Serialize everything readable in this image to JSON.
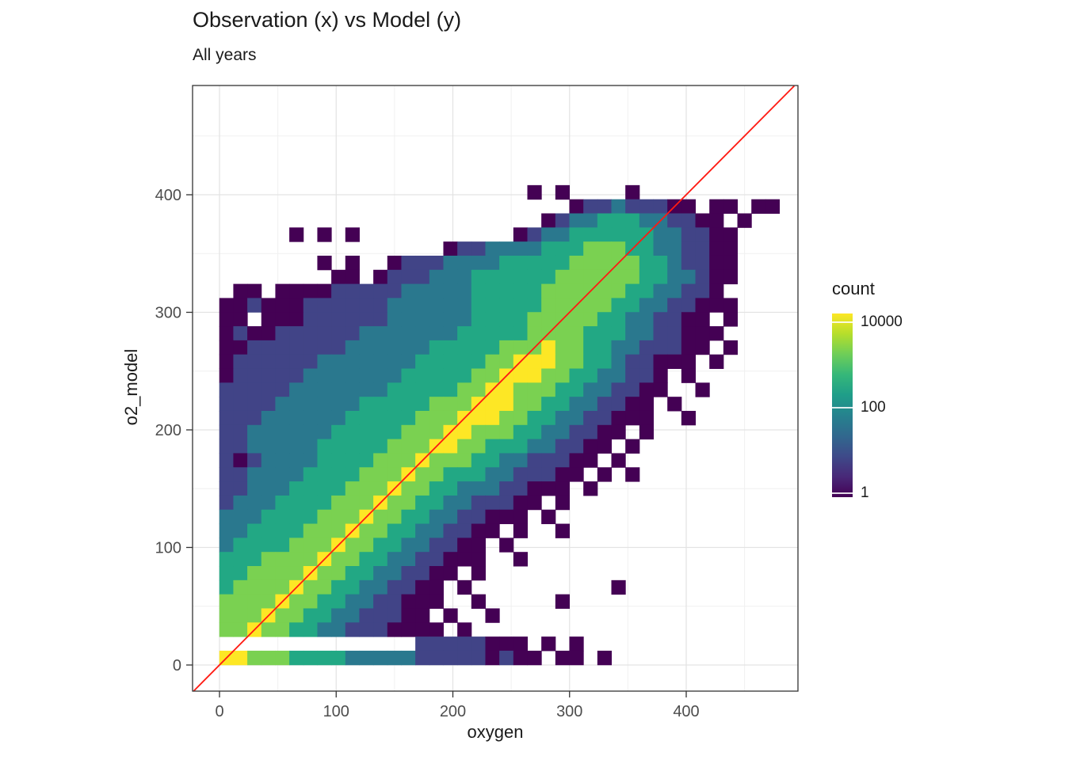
{
  "header": {
    "title": "Observation (x) vs Model (y)",
    "subtitle": "All years"
  },
  "chart_data": {
    "type": "heatmap",
    "title": "Observation (x) vs Model (y)",
    "subtitle": "All years",
    "xlabel": "oxygen",
    "ylabel": "o2_model",
    "x_ticks": [
      0,
      100,
      200,
      300,
      400
    ],
    "y_ticks": [
      0,
      100,
      200,
      300,
      400
    ],
    "x_minor_ticks": [
      50,
      150,
      250,
      350,
      450
    ],
    "y_minor_ticks": [
      50,
      150,
      250,
      350,
      450
    ],
    "x_range": [
      -23,
      496
    ],
    "y_range": [
      -22,
      493
    ],
    "grid": true,
    "palette": "viridis",
    "identity_line": {
      "slope": 1,
      "intercept": 0,
      "color": "#ff1a12"
    },
    "legend": {
      "title": "count",
      "scale": "log10",
      "position": "right",
      "tick_labels": [
        "10000",
        "100",
        "1"
      ],
      "tick_values": [
        10000,
        100,
        1
      ],
      "gradient": [
        "#440154",
        "#482878",
        "#3e4a89",
        "#31688e",
        "#26828e",
        "#1f9e89",
        "#35b779",
        "#6ece58",
        "#b5de2b",
        "#fde725"
      ]
    },
    "bin_width": 12,
    "y_max": 480,
    "encoding": "rows are top-to-bottom strips of 12-unit square bins starting at y_max; each char is one bin from x=0: '.'=empty, digits are approximate log-scaled counts per level_count_approx",
    "level_colors": {
      "1": "#440154",
      "2": "#414487",
      "3": "#2a788e",
      "4": "#22a884",
      "5": "#7ad151",
      "6": "#fde725"
    },
    "level_count_approx": {
      "1": 1,
      "2": 10,
      "3": 100,
      "4": 600,
      "5": 3000,
      "6": 10000
    },
    "rows": [
      "........................................",
      "........................................",
      "........................................",
      "........................................",
      "........................................",
      "........................................",
      "......................1.1....1..........",
      ".........................122322211.11.11",
      ".......................1233444332211.1..",
      ".....1.1.1...........1233444444332211...",
      "................122333344455544332211...",
      ".......1.1..1222333344444555554432211...",
      "........11.12223334444445555554433211...",
      ".11.11112222233333444445555554433221....",
      "1121112222223333334444455555443322111...",
      "11.11122222233333344445555544332211.1...",
      "121122222233333334444455554443322111....",
      "11222222233333344444555655443322211.1...",
      "1222222333333344444556665544322111.1....",
      "12222233333334444455666554433221.1......",
      "22222333333344444556655544332211..1.....",
      "2222333333444445556665544332211.1.......",
      "2223333334444455566655443322111..1......",
      "22333333444445556655544332211.1.........",
      "2233333444445556655444332211.1..........",
      "212333344445556555443322211.1...........",
      "22333344445556554443322211.1.1..........",
      "2233344445556554433322111.1.............",
      "23334444555655443322211.1...............",
      "3334444555655443322111.1................",
      "33444455565544332211.1..1...............",
      "3444455565544332211.1...................",
      "4445555655443322111..1..................",
      "44555565544332211.1.....................",
      "4555565544332211.1..........1...........",
      "5555655443322111..1.....1...............",
      "555655443322211.1..1....................",
      "5565544332221111.1......................",
      "..............22222111.1.1..............",
      "66555444433333222221211.11.1............"
    ]
  }
}
